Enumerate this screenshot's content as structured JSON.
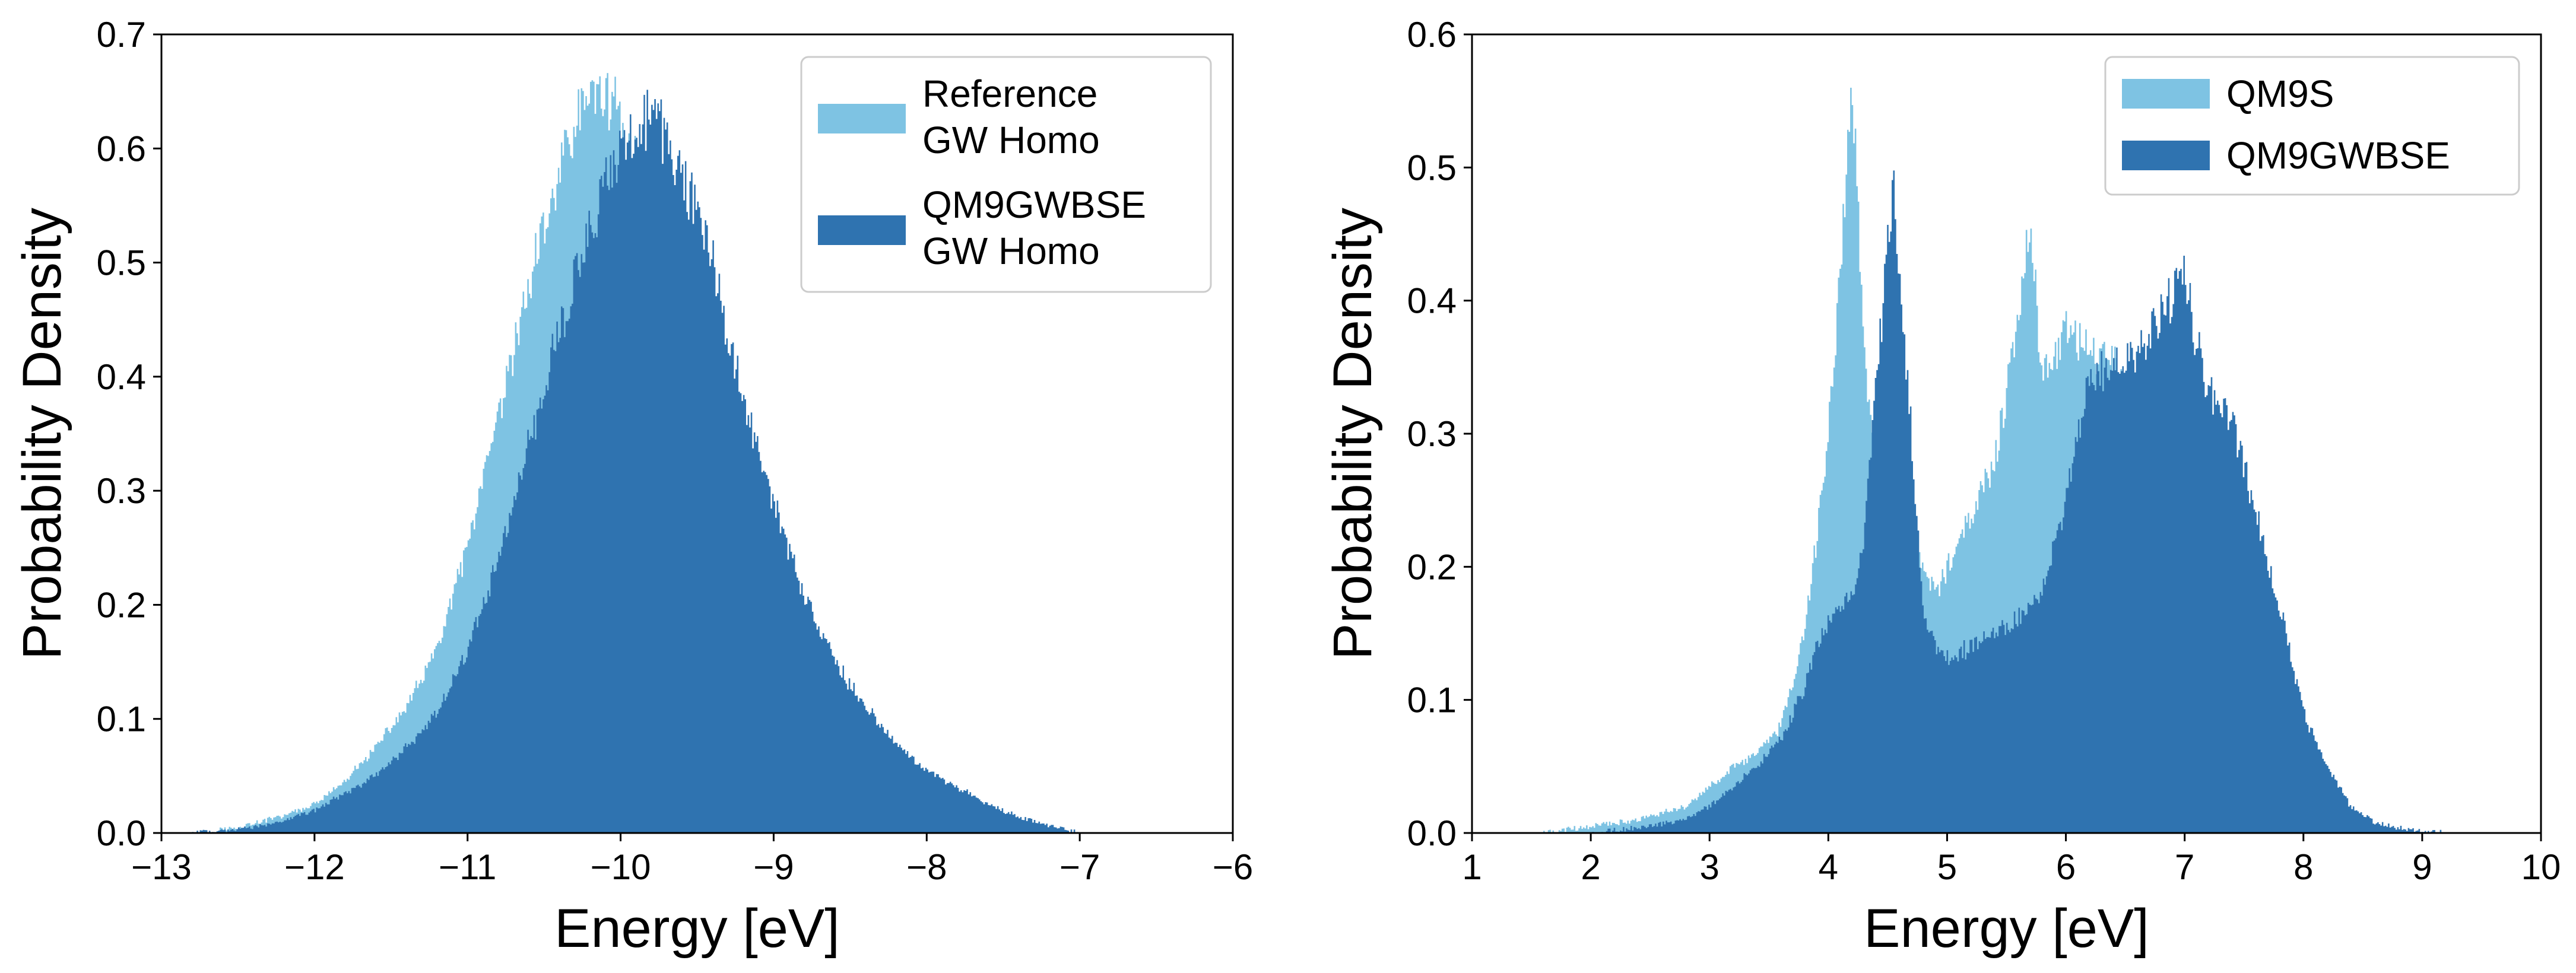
{
  "chart_data": [
    {
      "type": "histogram",
      "xlabel": "Energy [eV]",
      "ylabel": "Probability Density",
      "xlim": [
        -13,
        -6
      ],
      "ylim": [
        0,
        0.7
      ],
      "xticks": [
        -13,
        -12,
        -11,
        -10,
        -9,
        -8,
        -7,
        -6
      ],
      "xtick_labels": [
        "−13",
        "−12",
        "−11",
        "−10",
        "−9",
        "−8",
        "−7",
        "−6"
      ],
      "yticks": [
        0.0,
        0.1,
        0.2,
        0.3,
        0.4,
        0.5,
        0.6,
        0.7
      ],
      "ytick_labels": [
        "0.0",
        "0.1",
        "0.2",
        "0.3",
        "0.4",
        "0.5",
        "0.6",
        "0.7"
      ],
      "legend_position": "top-right",
      "series": [
        {
          "name": "Reference GW Homo",
          "legend_lines": [
            "Reference",
            "GW Homo"
          ],
          "color": "#7ec3e3",
          "x": [
            -12.8,
            -12.5,
            -12.2,
            -12.0,
            -11.8,
            -11.6,
            -11.4,
            -11.2,
            -11.0,
            -10.8,
            -10.6,
            -10.4,
            -10.3,
            -10.2,
            -10.1,
            -10.0,
            -9.9,
            -9.8,
            -9.6,
            -9.4,
            -9.2,
            -9.0,
            -8.8,
            -8.6,
            -8.4,
            -8.2,
            -8.0,
            -7.8,
            -7.6,
            -7.4,
            -7.2,
            -7.0
          ],
          "values": [
            0.0,
            0.005,
            0.015,
            0.025,
            0.045,
            0.075,
            0.11,
            0.16,
            0.25,
            0.36,
            0.48,
            0.58,
            0.62,
            0.645,
            0.65,
            0.625,
            0.585,
            0.53,
            0.42,
            0.32,
            0.24,
            0.18,
            0.13,
            0.095,
            0.07,
            0.05,
            0.035,
            0.022,
            0.012,
            0.006,
            0.002,
            0.0
          ]
        },
        {
          "name": "QM9GWBSE GW Homo",
          "legend_lines": [
            "QM9GWBSE",
            "GW Homo"
          ],
          "color": "#2f73b0",
          "x": [
            -12.8,
            -12.5,
            -12.2,
            -12.0,
            -11.8,
            -11.6,
            -11.4,
            -11.2,
            -11.0,
            -10.8,
            -10.6,
            -10.4,
            -10.2,
            -10.0,
            -9.9,
            -9.8,
            -9.7,
            -9.6,
            -9.4,
            -9.2,
            -9.0,
            -8.8,
            -8.6,
            -8.4,
            -8.2,
            -8.0,
            -7.8,
            -7.6,
            -7.4,
            -7.2,
            -7.0
          ],
          "values": [
            0.0,
            0.003,
            0.01,
            0.02,
            0.035,
            0.05,
            0.075,
            0.105,
            0.16,
            0.24,
            0.34,
            0.44,
            0.53,
            0.6,
            0.615,
            0.625,
            0.61,
            0.58,
            0.5,
            0.38,
            0.29,
            0.21,
            0.15,
            0.11,
            0.08,
            0.055,
            0.04,
            0.025,
            0.014,
            0.006,
            0.0
          ]
        }
      ]
    },
    {
      "type": "histogram",
      "xlabel": "Energy [eV]",
      "ylabel": "Probability Density",
      "xlim": [
        1,
        10
      ],
      "ylim": [
        0,
        0.6
      ],
      "xticks": [
        1,
        2,
        3,
        4,
        5,
        6,
        7,
        8,
        9,
        10
      ],
      "xtick_labels": [
        "1",
        "2",
        "3",
        "4",
        "5",
        "6",
        "7",
        "8",
        "9",
        "10"
      ],
      "yticks": [
        0.0,
        0.1,
        0.2,
        0.3,
        0.4,
        0.5,
        0.6
      ],
      "ytick_labels": [
        "0.0",
        "0.1",
        "0.2",
        "0.3",
        "0.4",
        "0.5",
        "0.6"
      ],
      "legend_position": "top-right",
      "series": [
        {
          "name": "QM9S",
          "legend_lines": [
            "QM9S"
          ],
          "color": "#7ec3e3",
          "x": [
            1.6,
            2.0,
            2.4,
            2.6,
            2.8,
            3.0,
            3.2,
            3.4,
            3.6,
            3.8,
            3.9,
            4.0,
            4.1,
            4.15,
            4.2,
            4.25,
            4.3,
            4.4,
            4.5,
            4.6,
            4.7,
            4.8,
            4.9,
            5.0,
            5.2,
            5.4,
            5.6,
            5.7,
            5.8,
            6.0,
            6.2,
            6.4,
            6.6,
            6.8,
            7.0,
            7.1,
            7.2,
            7.4,
            7.6,
            7.8,
            8.0,
            8.2,
            8.4
          ],
          "values": [
            0.0,
            0.005,
            0.01,
            0.015,
            0.02,
            0.035,
            0.05,
            0.06,
            0.08,
            0.15,
            0.22,
            0.3,
            0.42,
            0.5,
            0.56,
            0.48,
            0.36,
            0.27,
            0.25,
            0.24,
            0.22,
            0.2,
            0.18,
            0.2,
            0.24,
            0.28,
            0.38,
            0.46,
            0.34,
            0.38,
            0.36,
            0.35,
            0.33,
            0.3,
            0.15,
            0.06,
            0.04,
            0.025,
            0.015,
            0.008,
            0.004,
            0.001,
            0.0
          ]
        },
        {
          "name": "QM9GWBSE",
          "legend_lines": [
            "QM9GWBSE"
          ],
          "color": "#2f73b0",
          "x": [
            2.0,
            2.4,
            2.8,
            3.0,
            3.2,
            3.4,
            3.6,
            3.8,
            3.9,
            4.0,
            4.1,
            4.2,
            4.3,
            4.4,
            4.5,
            4.55,
            4.6,
            4.7,
            4.8,
            4.9,
            5.0,
            5.2,
            5.4,
            5.6,
            5.8,
            6.0,
            6.2,
            6.4,
            6.6,
            6.8,
            7.0,
            7.1,
            7.2,
            7.4,
            7.6,
            7.8,
            8.0,
            8.2,
            8.4,
            8.6,
            8.8,
            9.0,
            9.2
          ],
          "values": [
            0.0,
            0.004,
            0.01,
            0.02,
            0.035,
            0.05,
            0.07,
            0.11,
            0.14,
            0.16,
            0.17,
            0.18,
            0.22,
            0.33,
            0.44,
            0.49,
            0.42,
            0.3,
            0.17,
            0.14,
            0.13,
            0.14,
            0.15,
            0.16,
            0.18,
            0.25,
            0.34,
            0.35,
            0.36,
            0.39,
            0.42,
            0.37,
            0.33,
            0.31,
            0.24,
            0.17,
            0.09,
            0.05,
            0.02,
            0.008,
            0.004,
            0.002,
            0.0
          ]
        }
      ]
    }
  ]
}
